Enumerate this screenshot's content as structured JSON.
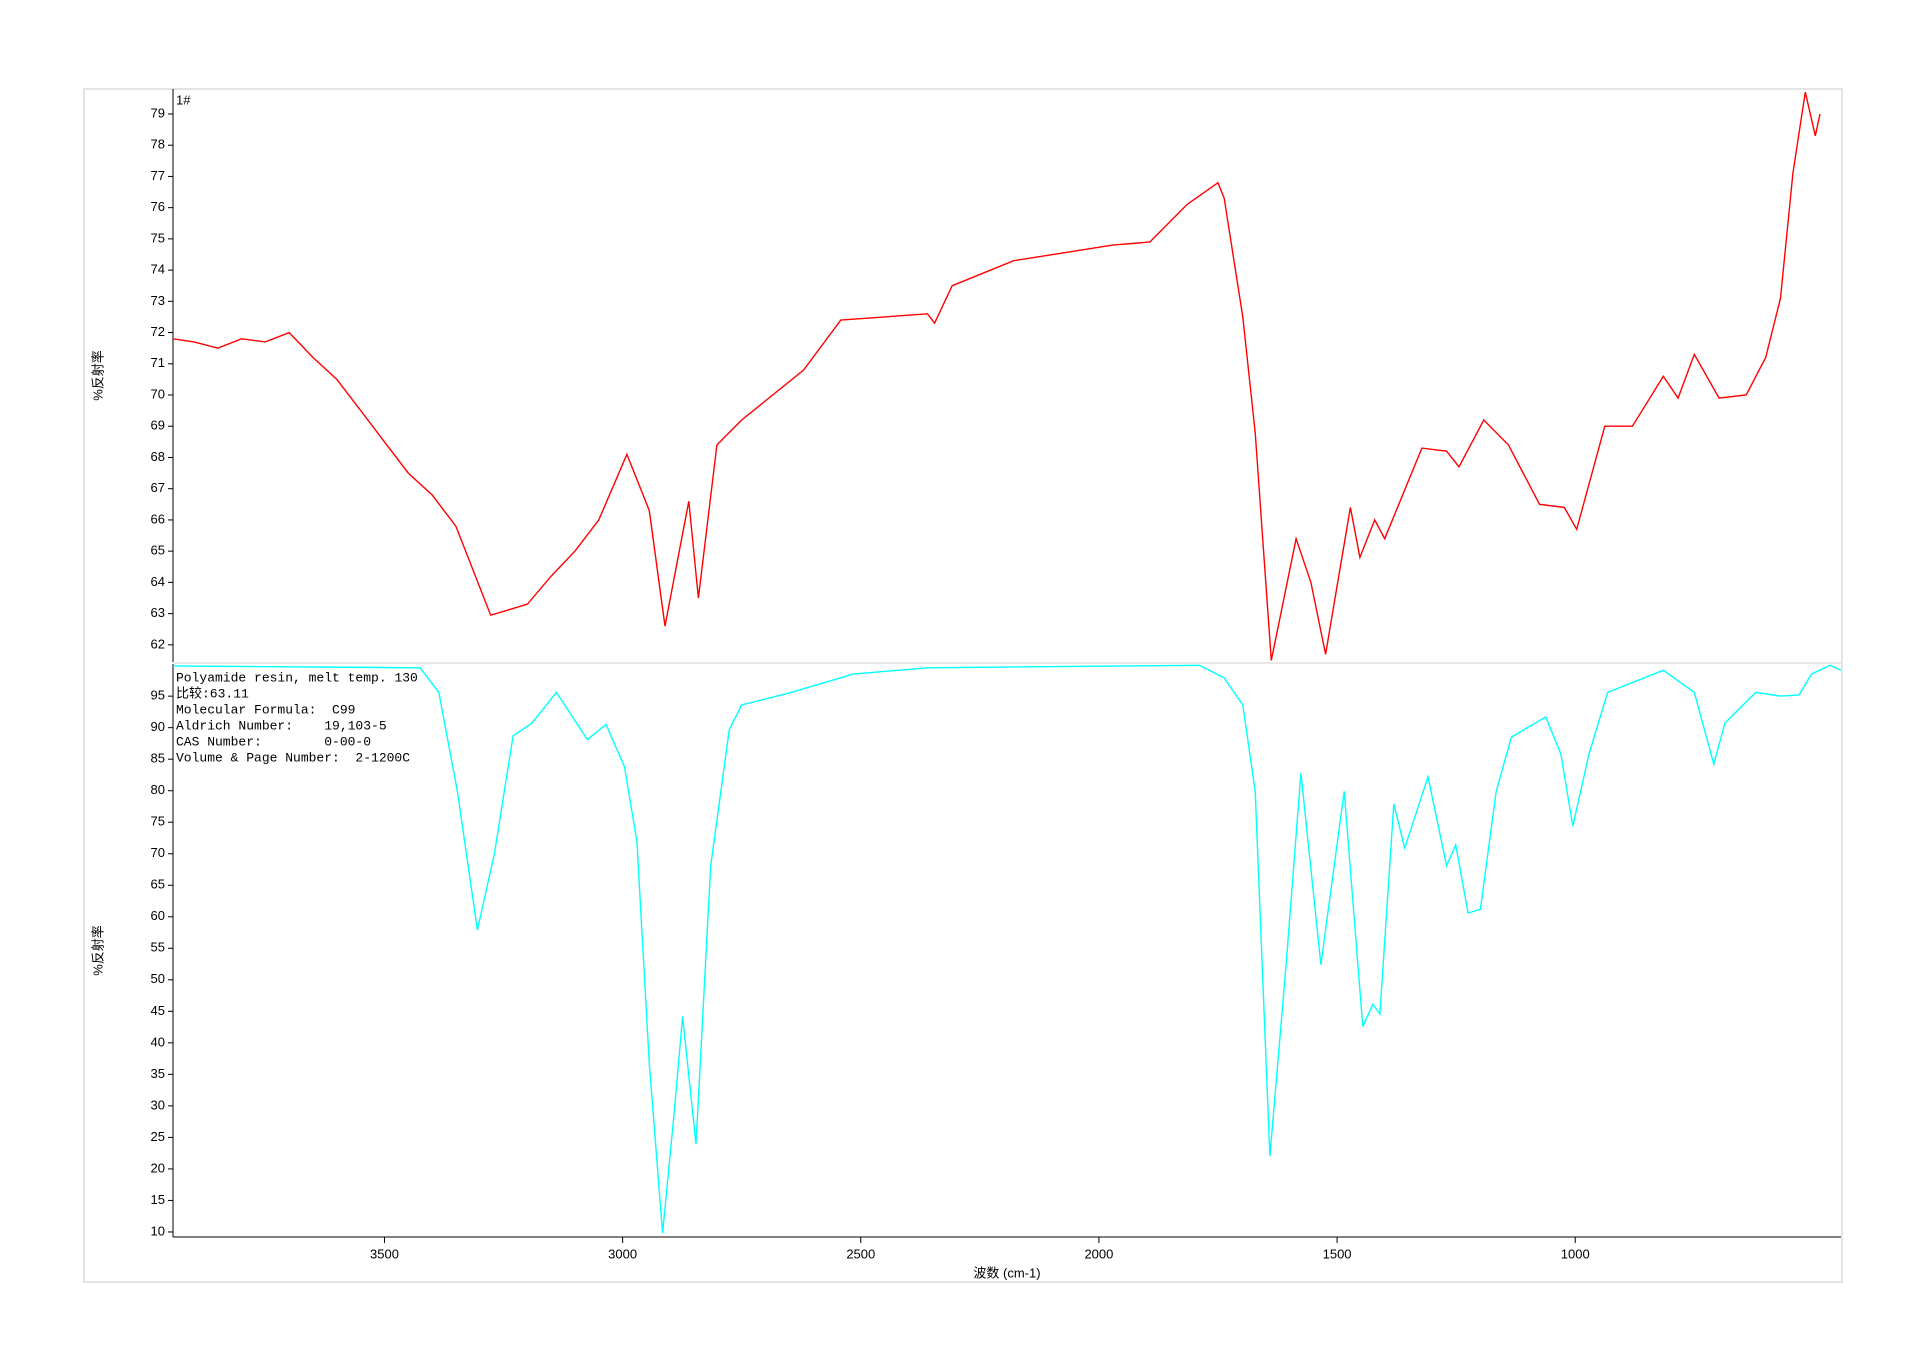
{
  "chart_data": [
    {
      "type": "line",
      "label": "1#",
      "ylabel": "%反射率",
      "x": [
        3944,
        3900,
        3850,
        3800,
        3750,
        3700,
        3650,
        3600,
        3550,
        3500,
        3450,
        3400,
        3350,
        3277,
        3200,
        3150,
        3100,
        3050,
        2991,
        2944,
        2911,
        2861,
        2841,
        2802,
        2750,
        2620,
        2542,
        2360,
        2345,
        2308,
        2179,
        1971,
        1893,
        1815,
        1750,
        1737,
        1698,
        1672,
        1638,
        1586,
        1555,
        1524,
        1503,
        1472,
        1452,
        1421,
        1400,
        1322,
        1270,
        1244,
        1192,
        1140,
        1075,
        1023,
        997,
        938,
        880,
        815,
        784,
        750,
        698,
        641,
        600,
        569,
        543,
        517,
        496,
        486
      ],
      "series": [
        {
          "color": "#ff0000",
          "values": [
            71.8,
            71.7,
            71.5,
            71.8,
            71.7,
            72.0,
            71.2,
            70.5,
            69.5,
            68.5,
            67.5,
            66.8,
            65.8,
            62.95,
            63.3,
            64.2,
            65.0,
            66.0,
            68.1,
            66.3,
            62.6,
            66.6,
            63.5,
            68.4,
            69.2,
            70.8,
            72.4,
            72.6,
            72.3,
            73.5,
            74.3,
            74.8,
            74.9,
            76.1,
            76.8,
            76.3,
            72.5,
            68.8,
            61.5,
            65.4,
            64.0,
            61.7,
            63.6,
            66.4,
            64.8,
            66.0,
            65.4,
            68.3,
            68.2,
            67.7,
            69.2,
            68.4,
            66.5,
            66.4,
            65.7,
            69.0,
            69.0,
            70.6,
            69.9,
            71.3,
            69.9,
            70.0,
            71.2,
            73.1,
            77.1,
            79.7,
            78.3,
            79.0
          ]
        }
      ],
      "xlim": [
        3944,
        442
      ],
      "ylim": [
        61.45,
        79.8
      ],
      "yticks": [
        62,
        63,
        64,
        65,
        66,
        67,
        68,
        69,
        70,
        71,
        72,
        73,
        74,
        75,
        76,
        77,
        78,
        79
      ]
    },
    {
      "type": "line",
      "ylabel": "%反射率",
      "xlabel": "波数 (cm-1)",
      "annotations": [
        "Polyamide resin, melt temp. 130",
        "比较:63.11",
        "Molecular Formula:  C99",
        "Aldrich Number:    19,103-5",
        "CAS Number:        0-00-0",
        "Volume & Page Number:  2-1200C"
      ],
      "x": [
        3944,
        3425,
        3386,
        3347,
        3305,
        3269,
        3230,
        3191,
        3139,
        3074,
        3035,
        2996,
        2970,
        2944,
        2916,
        2892,
        2874,
        2846,
        2815,
        2776,
        2750,
        2646,
        2516,
        2360,
        1789,
        1737,
        1698,
        1672,
        1641,
        1607,
        1576,
        1534,
        1485,
        1446,
        1425,
        1410,
        1381,
        1358,
        1309,
        1270,
        1251,
        1225,
        1199,
        1166,
        1134,
        1062,
        1030,
        1005,
        971,
        932,
        815,
        750,
        709,
        686,
        621,
        569,
        530,
        504,
        465,
        442
      ],
      "series": [
        {
          "color": "#00ffff",
          "values": [
            99.8,
            99.5,
            95.6,
            79.9,
            57.9,
            70.1,
            88.7,
            90.7,
            95.6,
            88.1,
            90.5,
            83.8,
            72.0,
            36.7,
            9.8,
            28.8,
            44.2,
            23.9,
            68.1,
            89.7,
            93.6,
            95.6,
            98.5,
            99.5,
            99.9,
            97.9,
            93.6,
            79.9,
            22.0,
            52.4,
            82.8,
            52.4,
            79.9,
            42.6,
            46.1,
            44.6,
            77.9,
            70.9,
            82.2,
            68.1,
            71.4,
            60.6,
            61.2,
            79.9,
            88.5,
            91.7,
            85.8,
            74.4,
            85.8,
            95.6,
            99.1,
            95.6,
            84.2,
            90.7,
            95.6,
            95.0,
            95.2,
            98.5,
            99.9,
            99.1
          ]
        }
      ],
      "xlim": [
        3944,
        442
      ],
      "ylim": [
        9.2,
        100.1
      ],
      "yticks": [
        10,
        15,
        20,
        25,
        30,
        35,
        40,
        45,
        50,
        55,
        60,
        65,
        70,
        75,
        80,
        85,
        90,
        95
      ],
      "xticks": [
        3500,
        3000,
        2500,
        2000,
        1500,
        1000
      ]
    }
  ]
}
